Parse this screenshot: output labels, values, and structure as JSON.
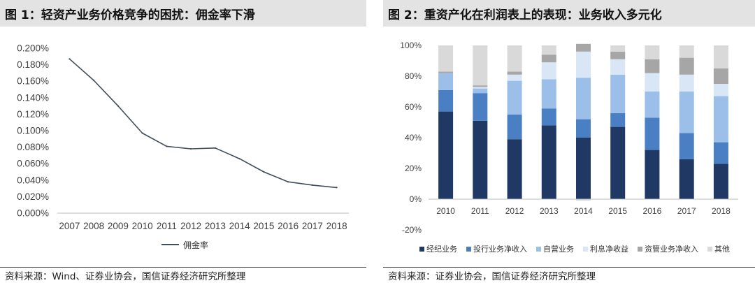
{
  "chart_data": [
    {
      "type": "line",
      "title": "图 1：轻资产业务价格竞争的困扰：佣金率下滑",
      "categories": [
        "2007",
        "2008",
        "2009",
        "2010",
        "2011",
        "2012",
        "2013",
        "2014",
        "2015",
        "2016",
        "2017",
        "2018"
      ],
      "series": [
        {
          "name": "佣金率",
          "color": "#3f4d5c",
          "values": [
            0.187,
            0.161,
            0.13,
            0.097,
            0.081,
            0.078,
            0.079,
            0.066,
            0.05,
            0.038,
            0.034,
            0.031
          ]
        }
      ],
      "ylim": [
        0,
        0.2
      ],
      "ytick_labels": [
        "0.000%",
        "0.020%",
        "0.040%",
        "0.060%",
        "0.080%",
        "0.100%",
        "0.120%",
        "0.140%",
        "0.160%",
        "0.180%",
        "0.200%"
      ],
      "grid": false,
      "legend": "bottom",
      "source": "资料来源：Wind、证券业协会，国信证券经济研究所整理"
    },
    {
      "type": "bar",
      "stacked": true,
      "title": "图 2：重资产化在利润表上的表现：业务收入多元化",
      "categories": [
        "2010",
        "2011",
        "2012",
        "2013",
        "2014",
        "2015",
        "2016",
        "2017",
        "2018"
      ],
      "series": [
        {
          "name": "经纪业务",
          "color": "#1f3864",
          "values": [
            57,
            51,
            39,
            48,
            40,
            47,
            32,
            26,
            23
          ]
        },
        {
          "name": "投行业务净收入",
          "color": "#4a7fc3",
          "values": [
            14,
            18,
            16,
            11,
            12,
            9,
            21,
            17,
            14
          ]
        },
        {
          "name": "自营业务",
          "color": "#9bbfe8",
          "values": [
            11,
            3,
            22,
            19,
            27,
            25,
            17,
            27,
            30
          ]
        },
        {
          "name": "利息净收益",
          "color": "#d8e6f6",
          "values": [
            0,
            1,
            4,
            11,
            17,
            10,
            12,
            11,
            8
          ]
        },
        {
          "name": "资管业务净收入",
          "color": "#a6a6a6",
          "values": [
            1,
            1,
            2,
            5,
            5,
            5,
            9,
            11,
            10
          ]
        },
        {
          "name": "其他",
          "color": "#d9d9d9",
          "values": [
            17,
            26,
            17,
            6,
            -1,
            4,
            9,
            8,
            15
          ]
        }
      ],
      "ylim": [
        -20,
        100
      ],
      "ytick_labels": [
        "-20%",
        "0%",
        "20%",
        "40%",
        "60%",
        "80%",
        "100%"
      ],
      "grid": false,
      "legend": "bottom",
      "source": "资料来源：证券业协会，国信证券经济研究所整理"
    }
  ]
}
